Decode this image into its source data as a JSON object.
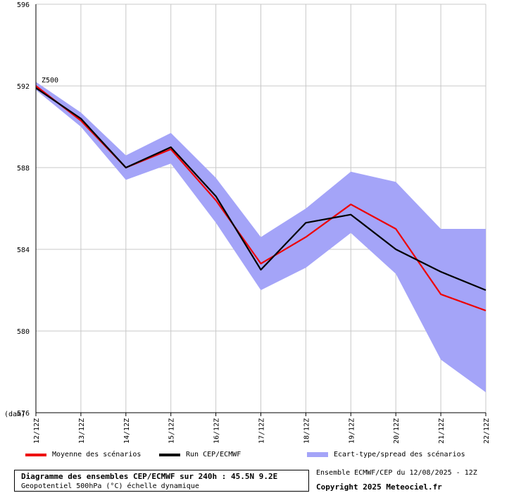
{
  "chart_data": {
    "type": "line",
    "annotation": "Z500",
    "unit_label": "(dam)",
    "categories": [
      "12/12Z",
      "13/12Z",
      "14/12Z",
      "15/12Z",
      "16/12Z",
      "17/12Z",
      "18/12Z",
      "19/12Z",
      "20/12Z",
      "21/12Z",
      "22/12Z"
    ],
    "ylim": [
      576,
      596
    ],
    "yticks": [
      576,
      580,
      584,
      588,
      592,
      596
    ],
    "grid": true,
    "series": [
      {
        "name": "Moyenne des scénarios",
        "color": "#ee0000",
        "values": [
          592.0,
          590.3,
          588.0,
          588.9,
          586.4,
          583.3,
          584.6,
          586.2,
          585.0,
          581.8,
          581.0
        ]
      },
      {
        "name": "Run CEP/ECMWF",
        "color": "#000000",
        "values": [
          591.9,
          590.4,
          588.0,
          589.0,
          586.6,
          583.0,
          585.3,
          585.7,
          584.0,
          582.9,
          582.0
        ]
      }
    ],
    "spread": {
      "name": "Ecart-type/spread des scénarios",
      "color": "#a4a4f8",
      "upper": [
        592.2,
        590.7,
        588.6,
        589.7,
        587.5,
        584.6,
        586.0,
        587.8,
        587.3,
        585.0,
        585.0
      ],
      "lower": [
        591.8,
        590.0,
        587.4,
        588.2,
        585.3,
        582.0,
        583.1,
        584.8,
        582.8,
        578.6,
        577.0
      ]
    },
    "legend_position": "bottom"
  },
  "legend": {
    "mean": "Moyenne des scénarios",
    "run": "Run CEP/ECMWF",
    "spread": "Ecart-type/spread des scénarios"
  },
  "title": "Diagramme des ensembles CEP/ECMWF sur 240h : 45.5N 9.2E",
  "subtitle": "Geopotentiel 500hPa (°C) échelle dynamique",
  "credit_line1": "Ensemble ECMWF/CEP du 12/08/2025 - 12Z",
  "credit_line2": "Copyright 2025 Meteociel.fr"
}
